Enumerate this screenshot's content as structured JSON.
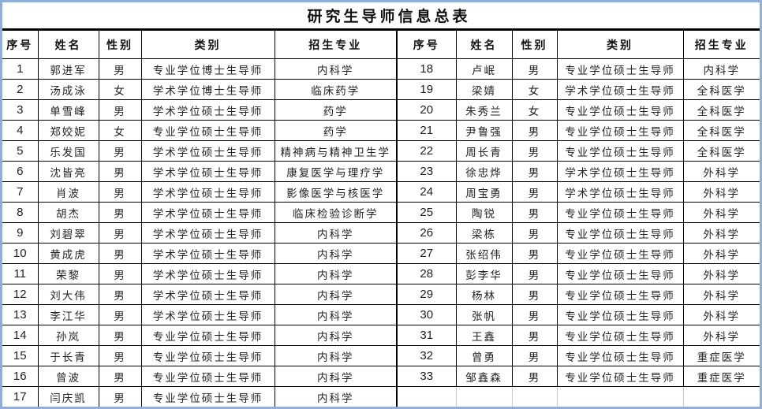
{
  "title": "研究生导师信息总表",
  "headers": [
    "序号",
    "姓名",
    "性别",
    "类别",
    "招生专业"
  ],
  "rows": [
    [
      "1",
      "郭进军",
      "男",
      "专业学位博士生导师",
      "内科学"
    ],
    [
      "2",
      "汤成泳",
      "女",
      "学术学位博士生导师",
      "临床药学"
    ],
    [
      "3",
      "单雪峰",
      "男",
      "学术学位硕士生导师",
      "药学"
    ],
    [
      "4",
      "郑姣妮",
      "女",
      "专业学位硕士生导师",
      "药学"
    ],
    [
      "5",
      "乐发国",
      "男",
      "学术学位硕士生导师",
      "精神病与精神卫生学"
    ],
    [
      "6",
      "沈皆亮",
      "男",
      "学术学位硕士生导师",
      "康复医学与理疗学"
    ],
    [
      "7",
      "肖波",
      "男",
      "学术学位硕士生导师",
      "影像医学与核医学"
    ],
    [
      "8",
      "胡杰",
      "男",
      "学术学位硕士生导师",
      "临床检验诊断学"
    ],
    [
      "9",
      "刘碧翠",
      "男",
      "学术学位硕士生导师",
      "内科学"
    ],
    [
      "10",
      "黄成虎",
      "男",
      "学术学位硕士生导师",
      "内科学"
    ],
    [
      "11",
      "荣黎",
      "男",
      "学术学位硕士生导师",
      "内科学"
    ],
    [
      "12",
      "刘大伟",
      "男",
      "学术学位硕士生导师",
      "内科学"
    ],
    [
      "13",
      "李江华",
      "男",
      "学术学位硕士生导师",
      "内科学"
    ],
    [
      "14",
      "孙岚",
      "男",
      "专业学位硕士生导师",
      "内科学"
    ],
    [
      "15",
      "于长青",
      "男",
      "专业学位硕士生导师",
      "内科学"
    ],
    [
      "16",
      "曾波",
      "男",
      "专业学位硕士生导师",
      "内科学"
    ],
    [
      "17",
      "闫庆凯",
      "男",
      "专业学位硕士生导师",
      "内科学"
    ],
    [
      "18",
      "卢岷",
      "男",
      "专业学位硕士生导师",
      "内科学"
    ],
    [
      "19",
      "梁婧",
      "女",
      "学术学位硕士生导师",
      "全科医学"
    ],
    [
      "20",
      "朱秀兰",
      "女",
      "专业学位硕士生导师",
      "全科医学"
    ],
    [
      "21",
      "尹鲁强",
      "男",
      "专业学位硕士生导师",
      "全科医学"
    ],
    [
      "22",
      "周长青",
      "男",
      "专业学位硕士生导师",
      "全科医学"
    ],
    [
      "23",
      "徐忠烨",
      "男",
      "学术学位硕士生导师",
      "外科学"
    ],
    [
      "24",
      "周宝勇",
      "男",
      "学术学位硕士生导师",
      "外科学"
    ],
    [
      "25",
      "陶锐",
      "男",
      "专业学位硕士生导师",
      "外科学"
    ],
    [
      "26",
      "梁栋",
      "男",
      "专业学位硕士生导师",
      "外科学"
    ],
    [
      "27",
      "张绍伟",
      "男",
      "专业学位硕士生导师",
      "外科学"
    ],
    [
      "28",
      "彭李华",
      "男",
      "专业学位硕士生导师",
      "外科学"
    ],
    [
      "29",
      "杨林",
      "男",
      "专业学位硕士生导师",
      "外科学"
    ],
    [
      "30",
      "张帆",
      "男",
      "专业学位硕士生导师",
      "外科学"
    ],
    [
      "31",
      "王鑫",
      "男",
      "专业学位硕士生导师",
      "外科学"
    ],
    [
      "32",
      "曾勇",
      "男",
      "专业学位硕士生导师",
      "重症医学"
    ],
    [
      "33",
      "邹鑫森",
      "男",
      "专业学位硕士生导师",
      "重症医学"
    ]
  ]
}
